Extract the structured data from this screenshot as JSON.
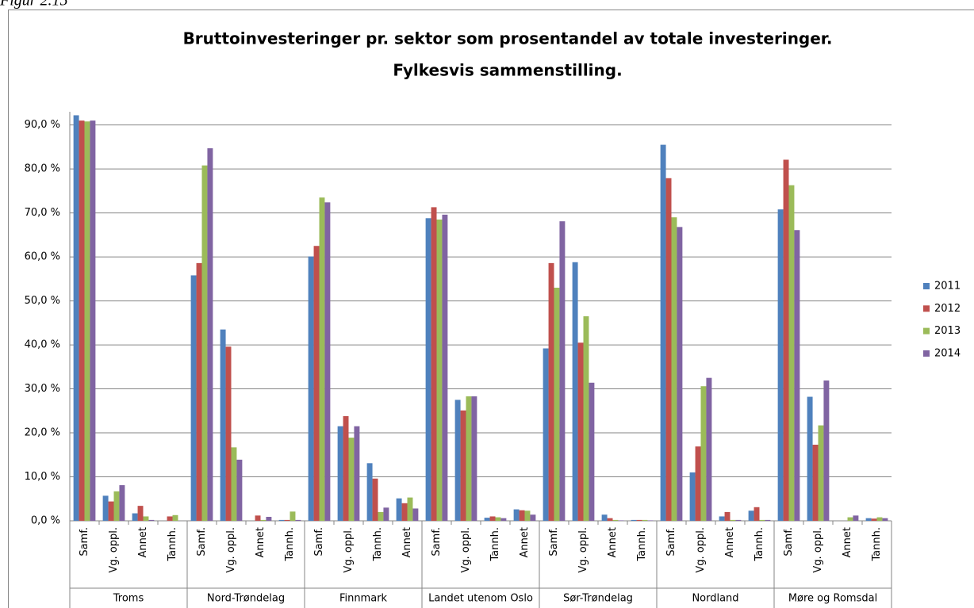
{
  "figure_label": "Figur 2.15",
  "chart_data": {
    "type": "bar",
    "title": "Bruttoinvesteringer pr. sektor som prosentandel av totale investeringer.",
    "subtitle": "Fylkesvis sammenstilling.",
    "categories": [
      "Samf.",
      "Vg. oppl.",
      "Annet",
      "Tannh.",
      "Samf.",
      "Vg. oppl.",
      "Annet",
      "Tannh.",
      "Samf.",
      "Vg. oppl.",
      "Tannh.",
      "Annet",
      "Samf.",
      "Vg. oppl.",
      "Tannh.",
      "Annet",
      "Samf.",
      "Vg. oppl.",
      "Annet",
      "Tannh.",
      "Samf.",
      "Vg. oppl.",
      "Annet",
      "Tannh.",
      "Samf.",
      "Vg. oppl.",
      "Annet",
      "Tannh."
    ],
    "category_groups": [
      "Troms",
      "Nord-Trøndelag",
      "Finnmark",
      "Landet utenom Oslo",
      "Sør-Trøndelag",
      "Nordland",
      "Møre og Romsdal"
    ],
    "series": [
      {
        "name": "2011",
        "color": "#4f81bd",
        "values": [
          92.2,
          5.7,
          1.7,
          0,
          55.8,
          43.5,
          0,
          0.2,
          60.1,
          21.5,
          13.1,
          5.1,
          68.8,
          27.5,
          0.7,
          2.6,
          39.2,
          58.8,
          1.4,
          0.2,
          85.5,
          11.0,
          1.0,
          2.3,
          70.8,
          28.2,
          0,
          0.6
        ]
      },
      {
        "name": "2012",
        "color": "#c0504d",
        "values": [
          91.0,
          4.4,
          3.4,
          1.0,
          58.6,
          39.6,
          1.2,
          0.2,
          62.5,
          23.8,
          9.6,
          4.0,
          71.3,
          25.1,
          1.0,
          2.4,
          58.6,
          40.5,
          0.6,
          0.2,
          77.9,
          16.9,
          2.0,
          3.1,
          82.1,
          17.3,
          0,
          0.5
        ]
      },
      {
        "name": "2013",
        "color": "#9bbb59",
        "values": [
          90.8,
          6.7,
          1.0,
          1.3,
          80.8,
          16.7,
          0.2,
          2.1,
          73.5,
          18.9,
          2.0,
          5.3,
          68.5,
          28.3,
          0.8,
          2.3,
          53.0,
          46.5,
          0.2,
          0.2,
          69.0,
          30.6,
          0.2,
          0.2,
          76.3,
          21.7,
          0.8,
          0.8
        ]
      },
      {
        "name": "2014",
        "color": "#8064a2",
        "values": [
          91.0,
          8.1,
          0.2,
          0,
          84.7,
          13.9,
          0.9,
          0.2,
          72.4,
          21.5,
          3.0,
          2.8,
          69.6,
          28.3,
          0.6,
          1.4,
          68.1,
          31.4,
          0.1,
          0.1,
          66.8,
          32.5,
          0.2,
          0.2,
          66.1,
          31.9,
          1.2,
          0.6
        ]
      }
    ],
    "ylim": [
      0,
      93
    ],
    "yticks": [
      {
        "value": 0,
        "label": "0,0 %"
      },
      {
        "value": 10,
        "label": "10,0 %"
      },
      {
        "value": 20,
        "label": "20,0 %"
      },
      {
        "value": 30,
        "label": "30,0 %"
      },
      {
        "value": 40,
        "label": "40,0 %"
      },
      {
        "value": 50,
        "label": "50,0 %"
      },
      {
        "value": 60,
        "label": "60,0 %"
      },
      {
        "value": 70,
        "label": "70,0 %"
      },
      {
        "value": 80,
        "label": "80,0 %"
      },
      {
        "value": 90,
        "label": "90,0 %"
      }
    ],
    "grid": true,
    "legend": "right"
  }
}
